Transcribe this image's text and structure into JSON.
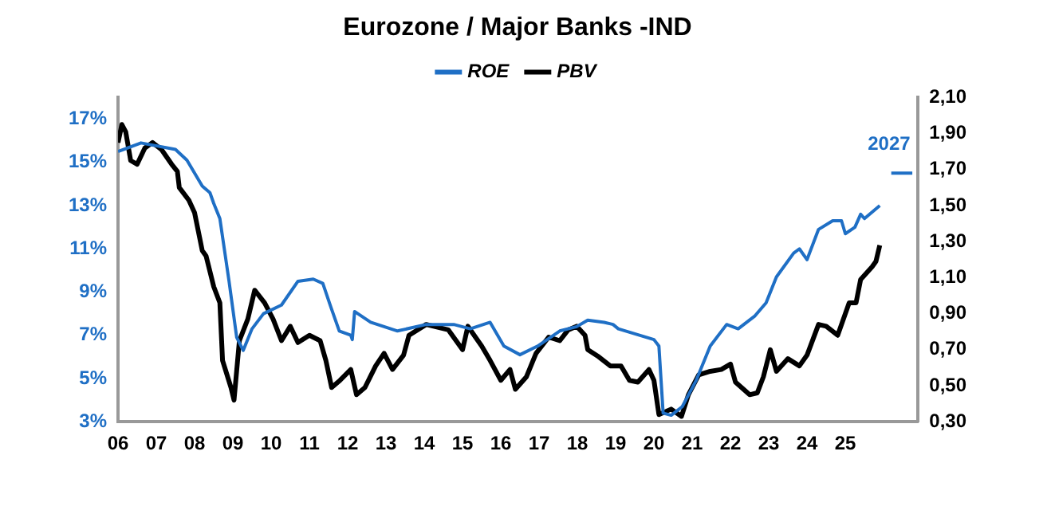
{
  "chart_data": {
    "type": "line",
    "title": "Eurozone / Major Banks -IND",
    "legend": "top",
    "xlim": [
      2006,
      2026.9
    ],
    "xticks": [
      {
        "value": 2006,
        "label": "06"
      },
      {
        "value": 2007,
        "label": "07"
      },
      {
        "value": 2008,
        "label": "08"
      },
      {
        "value": 2009,
        "label": "09"
      },
      {
        "value": 2010,
        "label": "10"
      },
      {
        "value": 2011,
        "label": "11"
      },
      {
        "value": 2012,
        "label": "12"
      },
      {
        "value": 2013,
        "label": "13"
      },
      {
        "value": 2014,
        "label": "14"
      },
      {
        "value": 2015,
        "label": "15"
      },
      {
        "value": 2016,
        "label": "16"
      },
      {
        "value": 2017,
        "label": "17"
      },
      {
        "value": 2018,
        "label": "18"
      },
      {
        "value": 2019,
        "label": "19"
      },
      {
        "value": 2020,
        "label": "20"
      },
      {
        "value": 2021,
        "label": "21"
      },
      {
        "value": 2022,
        "label": "22"
      },
      {
        "value": 2023,
        "label": "23"
      },
      {
        "value": 2024,
        "label": "24"
      },
      {
        "value": 2025,
        "label": "25"
      }
    ],
    "ylim": [
      3,
      18
    ],
    "yticks": [
      {
        "value": 3,
        "label": "3%"
      },
      {
        "value": 5,
        "label": "5%"
      },
      {
        "value": 7,
        "label": "7%"
      },
      {
        "value": 9,
        "label": "9%"
      },
      {
        "value": 11,
        "label": "11%"
      },
      {
        "value": 13,
        "label": "13%"
      },
      {
        "value": 15,
        "label": "15%"
      },
      {
        "value": 17,
        "label": "17%"
      }
    ],
    "y2lim": [
      0.3,
      2.1
    ],
    "y2ticks": [
      {
        "value": 0.3,
        "label": "0,30"
      },
      {
        "value": 0.5,
        "label": "0,50"
      },
      {
        "value": 0.7,
        "label": "0,70"
      },
      {
        "value": 0.9,
        "label": "0,90"
      },
      {
        "value": 1.1,
        "label": "1,10"
      },
      {
        "value": 1.3,
        "label": "1,30"
      },
      {
        "value": 1.5,
        "label": "1,50"
      },
      {
        "value": 1.7,
        "label": "1,70"
      },
      {
        "value": 1.9,
        "label": "1,90"
      },
      {
        "value": 2.1,
        "label": "2,10"
      }
    ],
    "annotations": [
      "2027"
    ],
    "series": [
      {
        "name": "ROE",
        "color": "#1f6fc5",
        "axis": "y",
        "x": [
          2006.0,
          2006.6,
          2007.5,
          2007.8,
          2008.2,
          2008.4,
          2008.5,
          2008.66,
          2008.9,
          2009.1,
          2009.27,
          2009.5,
          2009.8,
          2010.27,
          2010.7,
          2011.1,
          2011.35,
          2011.56,
          2011.78,
          2012.08,
          2012.12,
          2012.18,
          2012.6,
          2013.3,
          2014.05,
          2014.77,
          2015.2,
          2015.72,
          2016.08,
          2016.5,
          2016.96,
          2017.54,
          2017.98,
          2018.27,
          2018.7,
          2018.93,
          2019.07,
          2020.0,
          2020.13,
          2020.24,
          2020.45,
          2020.74,
          2021.1,
          2021.47,
          2021.9,
          2022.2,
          2022.64,
          2022.93,
          2023.2,
          2023.65,
          2023.8,
          2024.0,
          2024.3,
          2024.67,
          2024.9,
          2025.0,
          2025.25,
          2025.4,
          2025.5,
          2025.9
        ],
        "values": [
          15.5,
          15.9,
          15.6,
          15.1,
          13.9,
          13.6,
          13.1,
          12.4,
          9.5,
          6.9,
          6.3,
          7.3,
          8.0,
          8.4,
          9.5,
          9.6,
          9.4,
          8.3,
          7.2,
          7.0,
          6.8,
          8.1,
          7.6,
          7.2,
          7.5,
          7.5,
          7.3,
          7.6,
          6.5,
          6.1,
          6.5,
          7.2,
          7.4,
          7.7,
          7.6,
          7.5,
          7.3,
          6.8,
          6.5,
          3.4,
          3.3,
          3.7,
          4.9,
          6.5,
          7.5,
          7.3,
          7.9,
          8.5,
          9.7,
          10.8,
          11.0,
          10.5,
          11.9,
          12.3,
          12.3,
          11.7,
          12.0,
          12.6,
          12.4,
          13.0
        ]
      },
      {
        "name": "PBV",
        "color": "#000000",
        "axis": "y2",
        "x": [
          2006.0,
          2006.1,
          2006.2,
          2006.33,
          2006.5,
          2006.7,
          2006.9,
          2007.14,
          2007.4,
          2007.55,
          2007.6,
          2007.85,
          2008.0,
          2008.2,
          2008.3,
          2008.5,
          2008.66,
          2008.73,
          2008.95,
          2009.03,
          2009.17,
          2009.39,
          2009.57,
          2009.83,
          2010.05,
          2010.27,
          2010.5,
          2010.7,
          2011.0,
          2011.28,
          2011.43,
          2011.58,
          2011.8,
          2012.08,
          2012.23,
          2012.45,
          2012.73,
          2012.95,
          2013.17,
          2013.46,
          2013.6,
          2014.05,
          2014.63,
          2015.0,
          2015.14,
          2015.5,
          2015.72,
          2016.0,
          2016.24,
          2016.38,
          2016.67,
          2016.92,
          2017.25,
          2017.54,
          2017.76,
          2017.98,
          2018.2,
          2018.27,
          2018.56,
          2018.86,
          2019.14,
          2019.36,
          2019.58,
          2019.87,
          2020.0,
          2020.13,
          2020.45,
          2020.72,
          2020.9,
          2021.17,
          2021.47,
          2021.76,
          2022.0,
          2022.13,
          2022.5,
          2022.7,
          2022.86,
          2023.04,
          2023.2,
          2023.5,
          2023.8,
          2024.0,
          2024.3,
          2024.5,
          2024.8,
          2025.1,
          2025.28,
          2025.4,
          2025.7,
          2025.8,
          2025.9
        ],
        "values": [
          1.85,
          1.95,
          1.91,
          1.75,
          1.73,
          1.82,
          1.85,
          1.81,
          1.73,
          1.69,
          1.6,
          1.53,
          1.46,
          1.25,
          1.22,
          1.05,
          0.96,
          0.64,
          0.49,
          0.42,
          0.75,
          0.87,
          1.03,
          0.96,
          0.87,
          0.75,
          0.83,
          0.74,
          0.78,
          0.75,
          0.64,
          0.49,
          0.53,
          0.59,
          0.45,
          0.49,
          0.61,
          0.68,
          0.59,
          0.67,
          0.78,
          0.84,
          0.81,
          0.7,
          0.83,
          0.72,
          0.64,
          0.53,
          0.59,
          0.48,
          0.55,
          0.68,
          0.77,
          0.75,
          0.81,
          0.83,
          0.78,
          0.7,
          0.66,
          0.61,
          0.61,
          0.53,
          0.52,
          0.59,
          0.53,
          0.34,
          0.37,
          0.33,
          0.45,
          0.56,
          0.58,
          0.59,
          0.62,
          0.52,
          0.45,
          0.46,
          0.55,
          0.7,
          0.58,
          0.65,
          0.61,
          0.67,
          0.84,
          0.83,
          0.78,
          0.96,
          0.96,
          1.09,
          1.16,
          1.19,
          1.28
        ]
      },
      {
        "color": "#1f6fc5",
        "axis": "y",
        "x": [
          2026.2,
          2026.75
        ],
        "values": [
          14.5,
          14.5
        ]
      }
    ]
  }
}
